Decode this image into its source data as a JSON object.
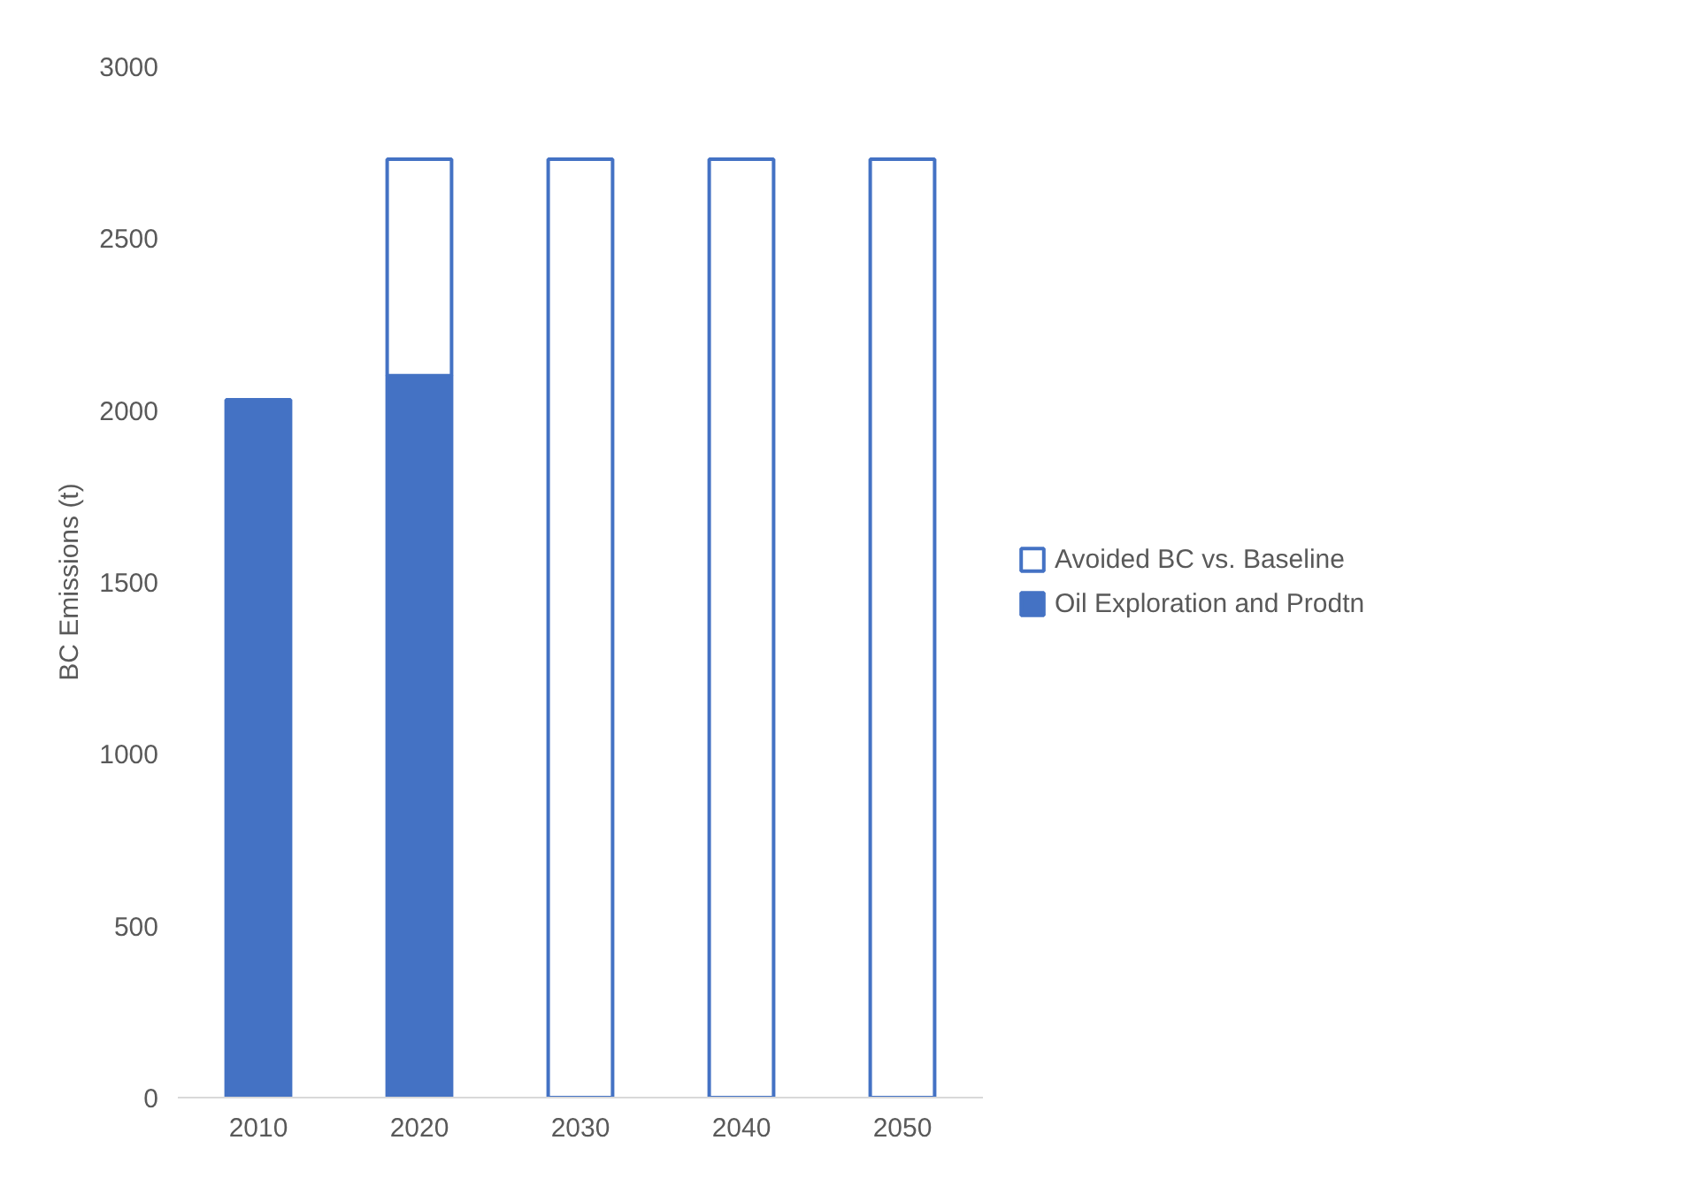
{
  "chart_data": {
    "type": "bar",
    "stacked": true,
    "categories": [
      "2010",
      "2020",
      "2030",
      "2040",
      "2050"
    ],
    "series": [
      {
        "name": "Oil Exploration and Prodtn",
        "color": "#4472c4",
        "values": [
          2030,
          2100,
          null,
          null,
          null
        ]
      },
      {
        "name": "Avoided BC vs. Baseline",
        "color": "#ffffff",
        "values": [
          null,
          630,
          2730,
          2730,
          2730
        ]
      }
    ],
    "ylabel": "BC Emissions (t)",
    "ylim": [
      0,
      3000
    ],
    "yticks": [
      0,
      500,
      1000,
      1500,
      2000,
      2500,
      3000
    ],
    "grid": false,
    "legend": "right"
  }
}
